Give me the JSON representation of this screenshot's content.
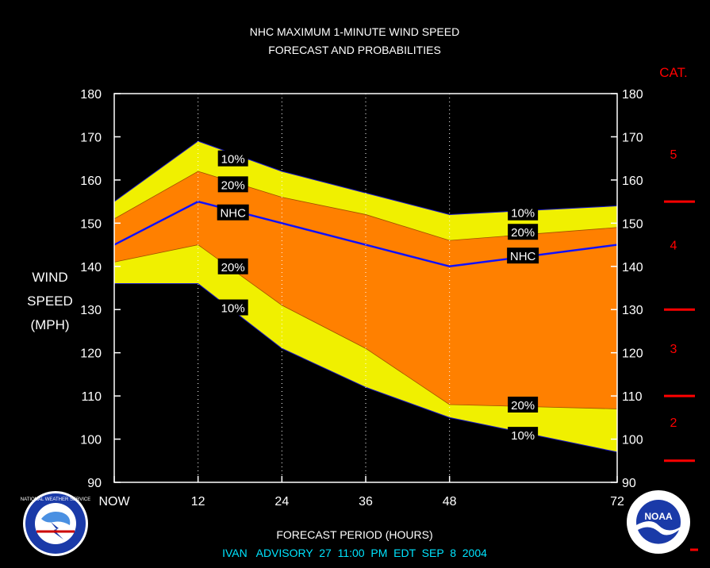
{
  "chart_data": {
    "type": "area",
    "title_line1": "NHC MAXIMUM 1-MINUTE WIND SPEED",
    "title_line2": "FORECAST AND PROBABILITIES",
    "ylabel_lines": [
      "WIND",
      "SPEED",
      "(MPH)"
    ],
    "xlabel": "FORECAST PERIOD (HOURS)",
    "advisory": "IVAN   ADVISORY  27  11:00  PM  EDT  SEP  8  2004",
    "ylim": [
      90,
      180
    ],
    "xlim": [
      0,
      72
    ],
    "y_ticks": [
      90,
      100,
      110,
      120,
      130,
      140,
      150,
      160,
      170,
      180
    ],
    "x_ticks": [
      {
        "x": 0,
        "label": "NOW"
      },
      {
        "x": 12,
        "label": "12"
      },
      {
        "x": 24,
        "label": "24"
      },
      {
        "x": 36,
        "label": "36"
      },
      {
        "x": 48,
        "label": "48"
      },
      {
        "x": 72,
        "label": "72"
      }
    ],
    "grid_x": [
      12,
      24,
      36,
      48
    ],
    "x": [
      0,
      12,
      24,
      36,
      48,
      72
    ],
    "series": [
      {
        "name": "10%",
        "band": "upper",
        "values": [
          155,
          169,
          162,
          157,
          152,
          154
        ]
      },
      {
        "name": "20%",
        "band": "upper",
        "values": [
          151,
          162,
          156,
          152,
          146,
          149
        ]
      },
      {
        "name": "NHC",
        "values": [
          145,
          155,
          150,
          145,
          140,
          145
        ]
      },
      {
        "name": "20%",
        "band": "lower",
        "values": [
          141,
          145,
          131,
          121,
          108,
          107
        ]
      },
      {
        "name": "10%",
        "band": "lower",
        "values": [
          136,
          136,
          121,
          112,
          105,
          97
        ]
      }
    ],
    "band_labels": [
      {
        "text": "10%",
        "x": 17,
        "y": 165
      },
      {
        "text": "20%",
        "x": 17,
        "y": 159
      },
      {
        "text": "NHC",
        "x": 17,
        "y": 152.5
      },
      {
        "text": "20%",
        "x": 17,
        "y": 140
      },
      {
        "text": "10%",
        "x": 17,
        "y": 130.5
      },
      {
        "text": "10%",
        "x": 58.5,
        "y": 152.5
      },
      {
        "text": "20%",
        "x": 58.5,
        "y": 148
      },
      {
        "text": "NHC",
        "x": 58.5,
        "y": 142.5
      },
      {
        "text": "20%",
        "x": 58.5,
        "y": 108
      },
      {
        "text": "10%",
        "x": 58.5,
        "y": 101
      }
    ],
    "category_header": "CAT.",
    "categories": [
      {
        "label": "5",
        "y": 166
      },
      {
        "label": "4",
        "y": 145
      },
      {
        "label": "3",
        "y": 121
      },
      {
        "label": "2",
        "y": 104
      }
    ],
    "category_boundaries": [
      155,
      130,
      110,
      95
    ],
    "colors": {
      "outer_band": "#f0f000",
      "inner_band": "#ff8000",
      "nhc_line": "#1010ff",
      "category": "#ff0000",
      "advisory": "#00e5ff"
    }
  },
  "logos": {
    "left": {
      "name": "NWS",
      "text": "NATIONAL WEATHER SERVICE"
    },
    "right": {
      "name": "NOAA",
      "text": "NOAA"
    }
  }
}
